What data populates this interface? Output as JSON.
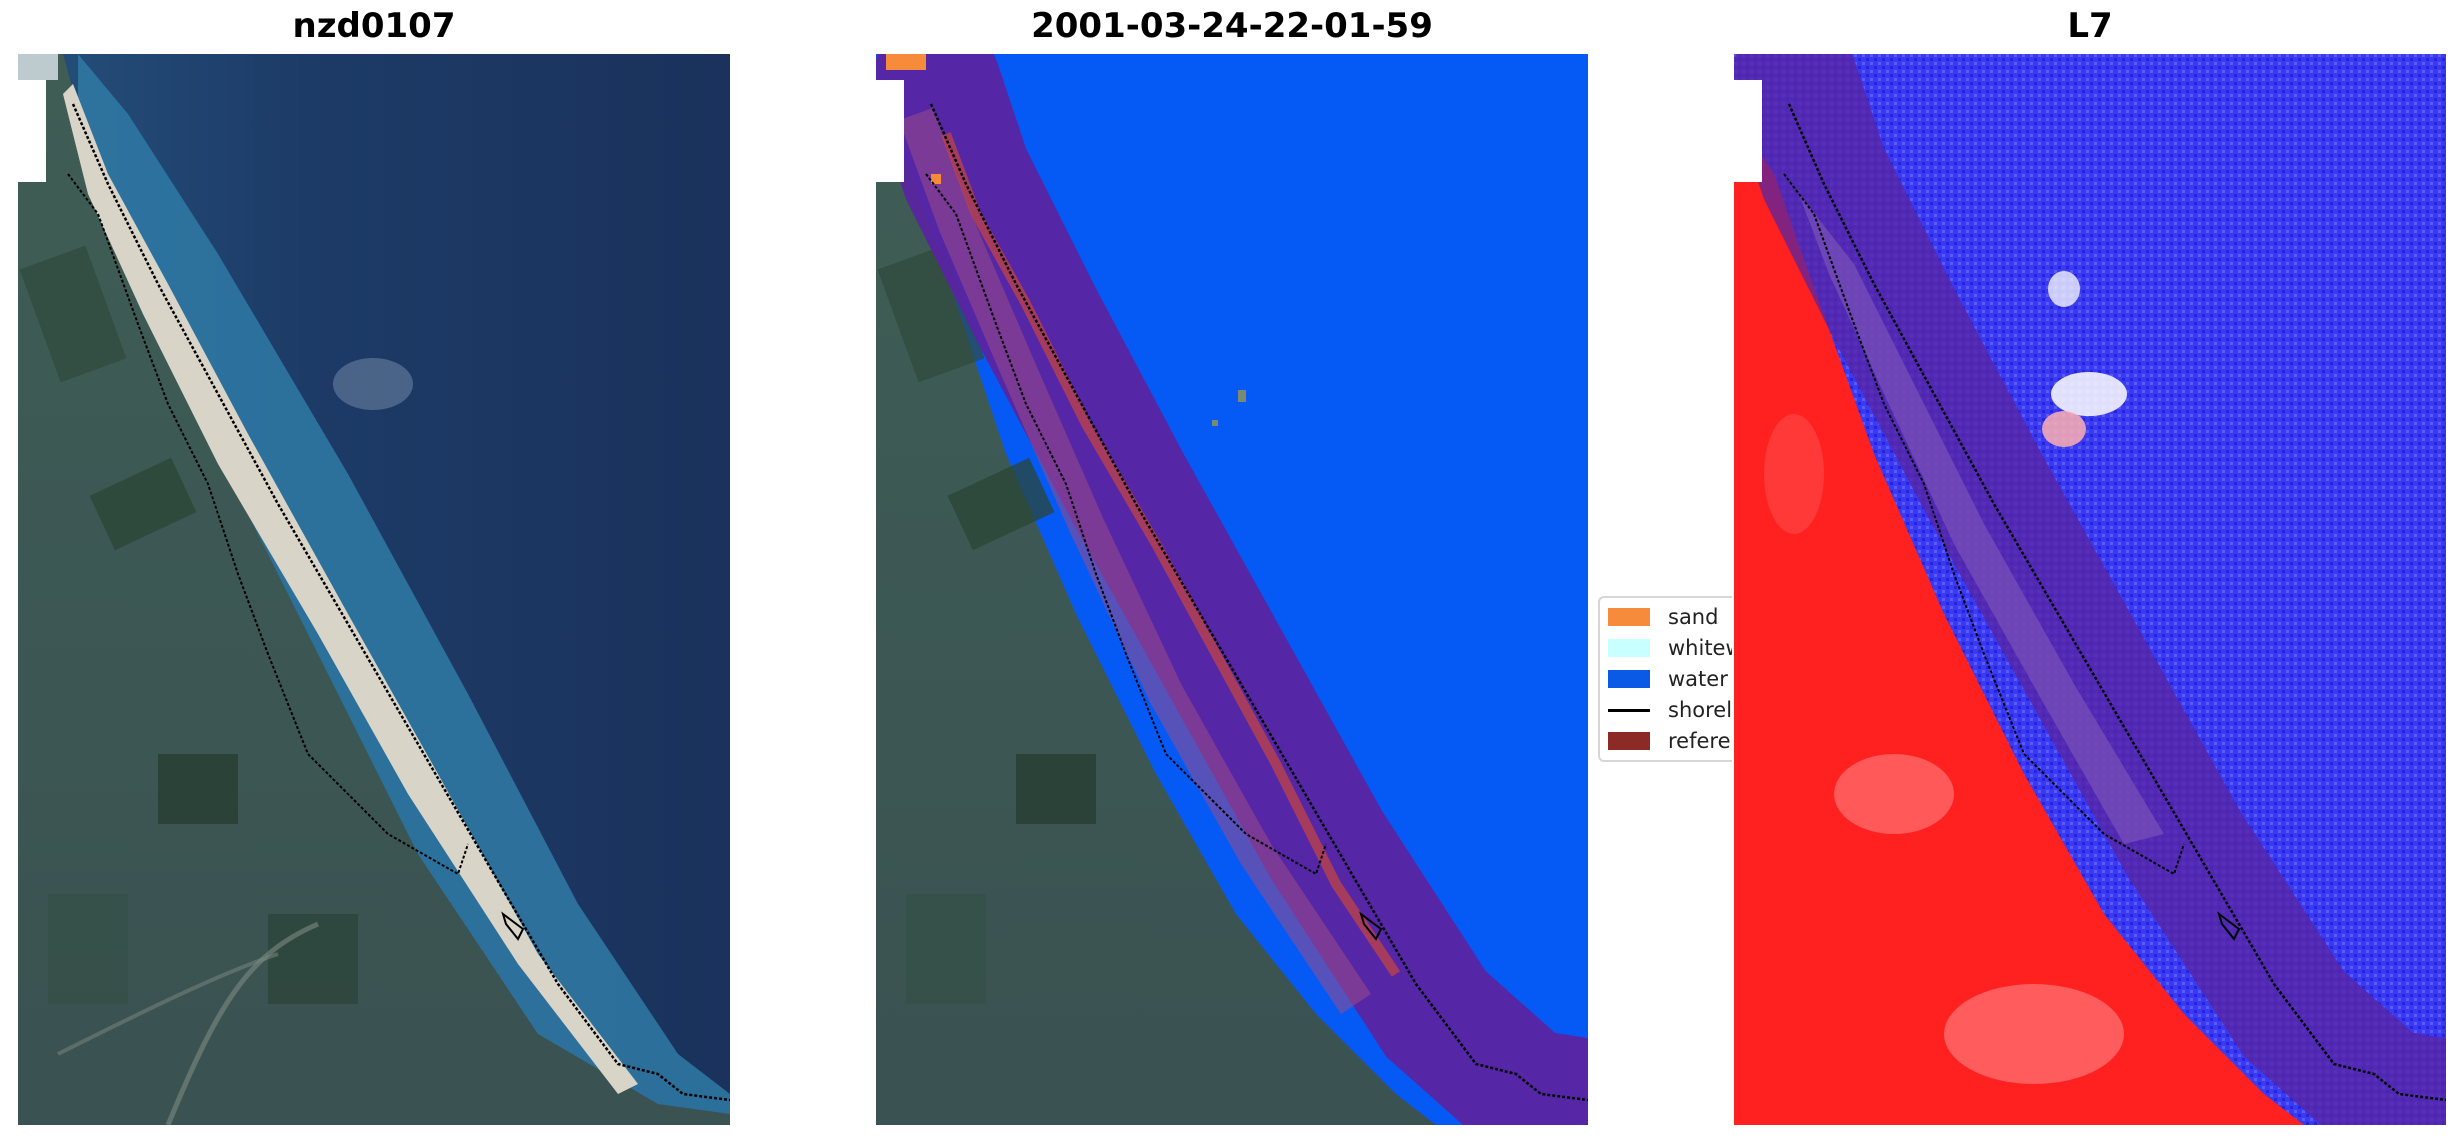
{
  "panels": [
    {
      "title": "nzd0107"
    },
    {
      "title": "2001-03-24-22-01-59"
    },
    {
      "title": "L7"
    }
  ],
  "legend": {
    "items": [
      {
        "label": "sand",
        "color": "#f68c3b",
        "kind": "patch"
      },
      {
        "label": "whitewater",
        "color": "#c8ffff",
        "kind": "patch"
      },
      {
        "label": "water",
        "color": "#0a5ae6",
        "kind": "patch"
      },
      {
        "label": "shoreline",
        "color": "#000000",
        "kind": "line"
      },
      {
        "label": "reference",
        "color": "#8c2a26",
        "kind": "patch"
      }
    ]
  },
  "colors": {
    "ocean": "#1f3a66",
    "land": "#3e5a4e",
    "beach": "#e8e3d8",
    "water_class": "#055af5",
    "buffer": "#5a24a0",
    "land_index": "#ff2020",
    "water_index": "#3030f0"
  }
}
